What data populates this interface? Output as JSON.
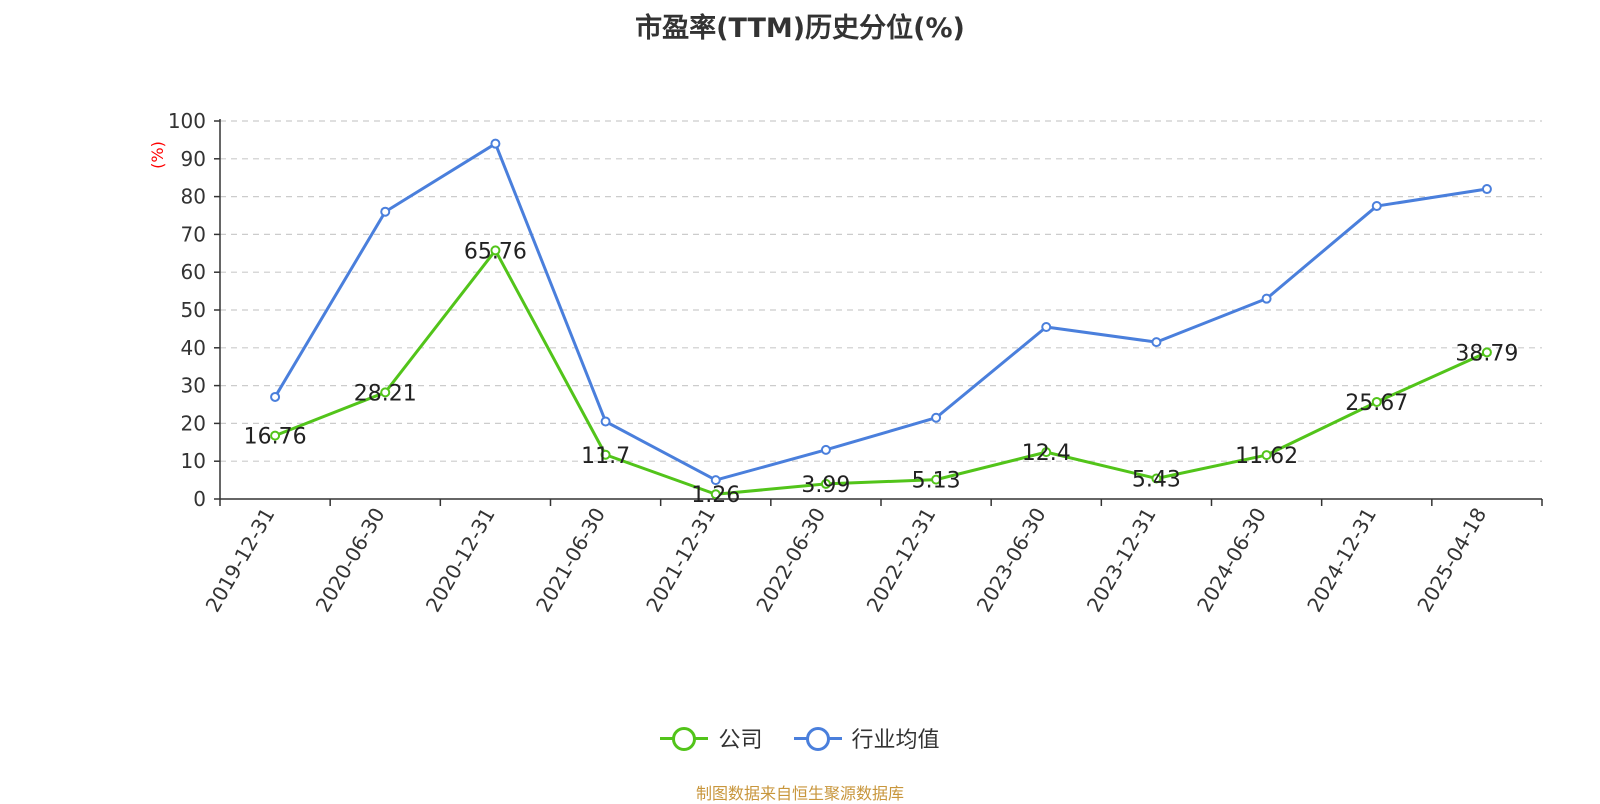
{
  "colors": {
    "company": "#52c41a",
    "industry": "#4a7fdc",
    "ylabel": "#ff0000",
    "source": "#c8963c"
  },
  "chart_data": {
    "type": "line",
    "title": "市盈率(TTM)历史分位(%)",
    "ylabel": "(%)",
    "ylim": [
      0,
      100
    ],
    "yticks": [
      0,
      10,
      20,
      30,
      40,
      50,
      60,
      70,
      80,
      90,
      100
    ],
    "grid": true,
    "legend_position": "bottom",
    "categories": [
      "2019-12-31",
      "2020-06-30",
      "2020-12-31",
      "2021-06-30",
      "2021-12-31",
      "2022-06-30",
      "2022-12-31",
      "2023-06-30",
      "2023-12-31",
      "2024-06-30",
      "2024-12-31",
      "2025-04-18"
    ],
    "series": [
      {
        "name": "公司",
        "values": [
          16.76,
          28.21,
          65.76,
          11.7,
          1.26,
          3.99,
          5.13,
          12.4,
          5.43,
          11.62,
          25.67,
          38.79
        ],
        "show_labels": true
      },
      {
        "name": "行业均值",
        "values": [
          27,
          76,
          94,
          20.5,
          5,
          13,
          21.5,
          45.5,
          41.5,
          53,
          77.5,
          82
        ],
        "show_labels": false
      }
    ]
  },
  "legend": {
    "company": "公司",
    "industry": "行业均值"
  },
  "source": "制图数据来自恒生聚源数据库"
}
